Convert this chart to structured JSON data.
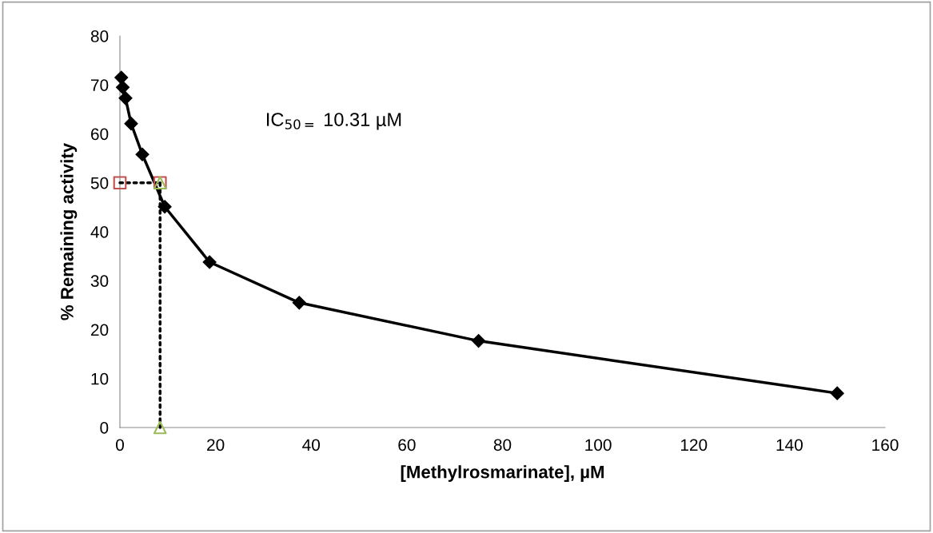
{
  "chart_data": {
    "type": "line",
    "xlabel": "[Methylrosmarinate], µM",
    "ylabel": "% Remaining activity",
    "annotations": [
      "IC$_{50=}$ 10.31 µM"
    ],
    "xlim": [
      0,
      160
    ],
    "xticks": [
      0,
      20,
      40,
      60,
      80,
      100,
      120,
      140,
      160
    ],
    "ylim": [
      0,
      80
    ],
    "yticks": [
      0,
      10,
      20,
      30,
      40,
      50,
      60,
      70,
      80
    ],
    "grid": false,
    "legend": false,
    "series": [
      {
        "color": "#000000",
        "marker": "diamond",
        "line_style": "solid",
        "x": [
          0.29,
          0.59,
          1.17,
          2.34,
          4.69,
          9.38,
          18.75,
          37.5,
          75,
          150
        ],
        "values": [
          71.5,
          69.5,
          67.3,
          62.1,
          55.8,
          45.1,
          33.8,
          25.5,
          17.7,
          7.0
        ]
      },
      {
        "type": "line",
        "color": "#000000",
        "marker": "none",
        "line_style": "dotted",
        "x": [
          0,
          8.4
        ],
        "values": [
          50,
          50
        ]
      },
      {
        "type": "line",
        "color": "#000000",
        "marker": "none",
        "line_style": "dotted",
        "x": [
          8.4,
          8.4
        ],
        "values": [
          50,
          0
        ]
      },
      {
        "type": "scatter",
        "color": "#c0504d",
        "marker": "square",
        "x": [
          0,
          8.4
        ],
        "values": [
          50,
          50
        ]
      },
      {
        "type": "scatter",
        "color": "#9bbb59",
        "marker": "triangle",
        "x": [
          8.4,
          8.4
        ],
        "values": [
          50,
          0
        ]
      }
    ]
  }
}
